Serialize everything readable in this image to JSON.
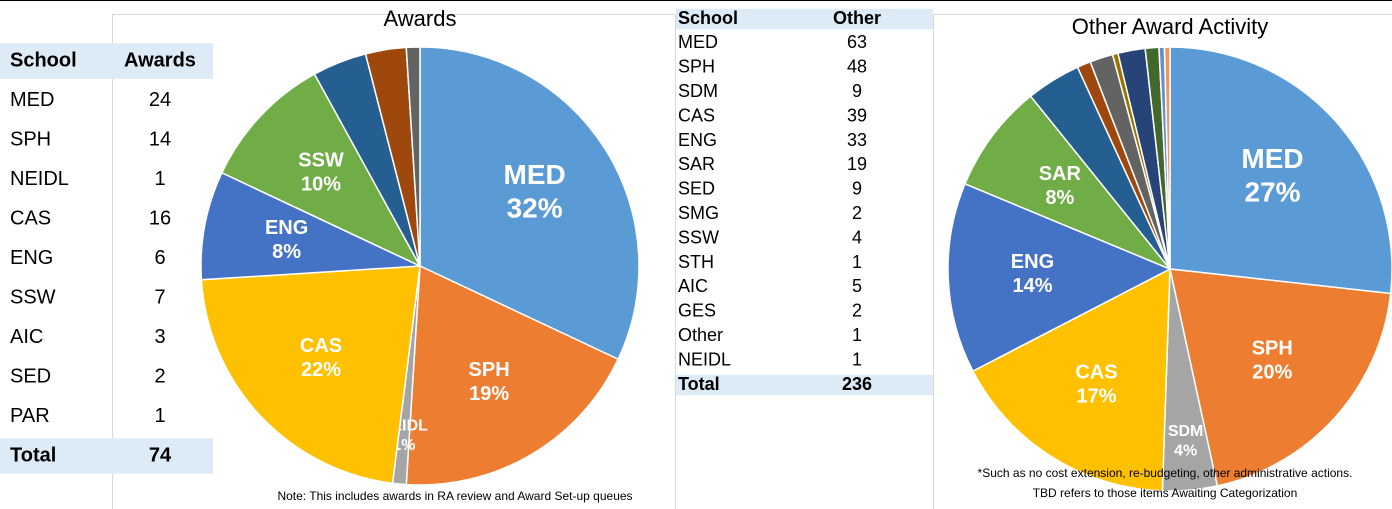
{
  "tables": [
    {
      "header": [
        "School",
        "Awards"
      ],
      "rows": [
        [
          "MED",
          24
        ],
        [
          "SPH",
          14
        ],
        [
          "NEIDL",
          1
        ],
        [
          "CAS",
          16
        ],
        [
          "ENG",
          6
        ],
        [
          "SSW",
          7
        ],
        [
          "AIC",
          3
        ],
        [
          "SED",
          2
        ],
        [
          "PAR",
          1
        ]
      ],
      "total": [
        "Total",
        74
      ]
    },
    {
      "header": [
        "School",
        "Other"
      ],
      "rows": [
        [
          "MED",
          63
        ],
        [
          "SPH",
          48
        ],
        [
          "SDM",
          9
        ],
        [
          "CAS",
          39
        ],
        [
          "ENG",
          33
        ],
        [
          "SAR",
          19
        ],
        [
          "SED",
          9
        ],
        [
          "SMG",
          2
        ],
        [
          "SSW",
          4
        ],
        [
          "STH",
          1
        ],
        [
          "AIC",
          5
        ],
        [
          "GES",
          2
        ],
        [
          "Other",
          1
        ],
        [
          "NEIDL",
          1
        ]
      ],
      "total": [
        "Total",
        236
      ]
    }
  ],
  "chart_data": [
    {
      "type": "pie",
      "title": "Awards",
      "note": "Note: This includes awards in RA review and Award Set-up queues",
      "categories": [
        "MED",
        "SPH",
        "NEIDL",
        "CAS",
        "ENG",
        "SSW",
        null,
        null,
        null
      ],
      "values": [
        32,
        19,
        1,
        22,
        8,
        10,
        4,
        3,
        1
      ],
      "value_labels": [
        "32%",
        "19%",
        "1%",
        "22%",
        "8%",
        "10%",
        null,
        null,
        null
      ],
      "colors": [
        "#5b9bd5",
        "#ed7d31",
        "#a5a5a5",
        "#ffc000",
        "#4472c4",
        "#70ad47",
        "#255e91",
        "#9e480e",
        "#636363"
      ]
    },
    {
      "type": "pie",
      "title": "Other Award Activity",
      "note": [
        "*Such as no cost extension, re-budgeting, other administrative actions.",
        "TBD refers to those items Awaiting Categorization"
      ],
      "categories": [
        "MED",
        "SPH",
        "SDM",
        "CAS",
        "ENG",
        "SAR",
        null,
        null,
        null,
        null,
        null,
        null,
        null,
        null
      ],
      "values": [
        27,
        20,
        4,
        17,
        14,
        8,
        4,
        1,
        1.7,
        0.4,
        2,
        1,
        0.4,
        0.4
      ],
      "value_labels": [
        "27%",
        "20%",
        "4%",
        "17%",
        "14%",
        "8%",
        null,
        null,
        null,
        null,
        null,
        null,
        null,
        null
      ],
      "colors": [
        "#5b9bd5",
        "#ed7d31",
        "#a5a5a5",
        "#ffc000",
        "#4472c4",
        "#70ad47",
        "#255e91",
        "#9e480e",
        "#636363",
        "#997300",
        "#264478",
        "#43682b",
        "#698ed0",
        "#f1975a"
      ]
    }
  ]
}
